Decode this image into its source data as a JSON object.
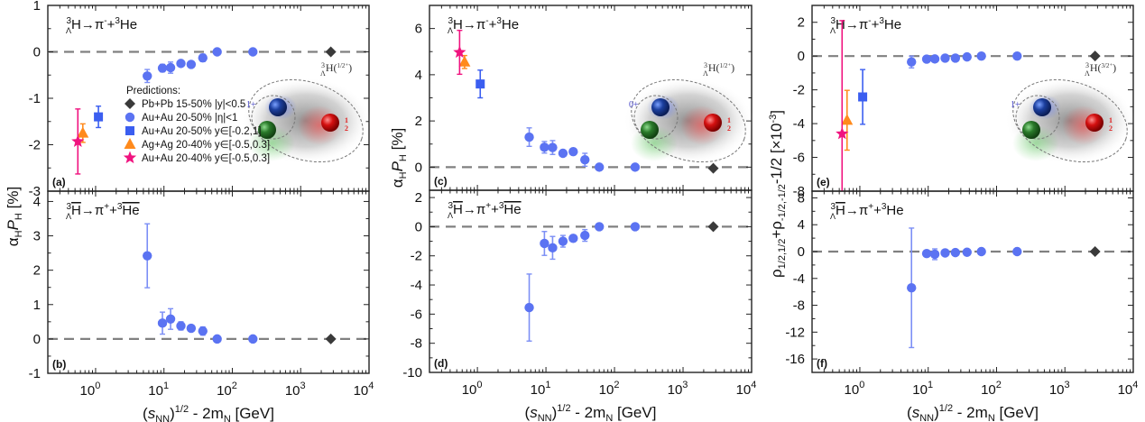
{
  "chart_data": [
    {
      "type": "scatter",
      "panel": "(a)",
      "reaction": "3ΛH → π⁻ + 3He",
      "ylabel": "α_H P_H [%]",
      "xlabel": "(s_NN)^1/2 - 2m_N [GeV]",
      "xscale": "log",
      "xlim": [
        0.2,
        10000
      ],
      "ylim": [
        -3,
        1
      ],
      "yticks": [
        -3,
        -2,
        -1,
        0,
        1
      ],
      "reference_line": 0,
      "inset": {
        "state": "3ΛH(1/2+)",
        "pair_label": "1+",
        "lambda_label": "1/2+"
      },
      "legend": {
        "title": "Predictions:",
        "position": "center-left",
        "entries": [
          {
            "label": "Pb+Pb 15-50% |y|<0.5",
            "marker": "diamond",
            "color": "#3a3a3a"
          },
          {
            "label": "Au+Au 20-50% |η|<1",
            "marker": "circle",
            "color": "#5b73f2"
          },
          {
            "label": "Au+Au 20-50% y∈[-0.2,1]",
            "marker": "square",
            "color": "#3b5ef0"
          },
          {
            "label": "Ag+Ag 20-40% y∈[-0.5,0.3]",
            "marker": "triangle",
            "color": "#ff8a1c"
          },
          {
            "label": "Au+Au 20-40% y∈[-0.5,0.3]",
            "marker": "star",
            "color": "#f0137f"
          }
        ]
      },
      "series": [
        {
          "name": "Pb+Pb 15-50% |y|<0.5",
          "points": [
            {
              "x": 2760,
              "y": 0.0
            }
          ]
        },
        {
          "name": "Au+Au 20-50% |η|<1",
          "points": [
            {
              "x": 5.7,
              "y": -0.52,
              "err": 0.14
            },
            {
              "x": 9.5,
              "y": -0.35,
              "err": 0.08
            },
            {
              "x": 12.5,
              "y": -0.34,
              "err": 0.12
            },
            {
              "x": 17.7,
              "y": -0.25,
              "err": 0.05
            },
            {
              "x": 25,
              "y": -0.27,
              "err": 0.04
            },
            {
              "x": 37,
              "y": -0.13,
              "err": 0.08
            },
            {
              "x": 60,
              "y": 0.0,
              "err": 0.03
            },
            {
              "x": 200,
              "y": 0.0,
              "err": 0.02
            }
          ]
        },
        {
          "name": "Au+Au 20-50% y∈[-0.2,1]",
          "points": [
            {
              "x": 1.1,
              "y": -1.4,
              "err": 0.23
            }
          ]
        },
        {
          "name": "Ag+Ag 20-40% y∈[-0.5,0.3]",
          "points": [
            {
              "x": 0.65,
              "y": -1.75,
              "err": 0.2
            }
          ]
        },
        {
          "name": "Au+Au 20-40% y∈[-0.5,0.3]",
          "points": [
            {
              "x": 0.55,
              "y": -1.93,
              "err": 0.7
            }
          ]
        }
      ]
    },
    {
      "type": "scatter",
      "panel": "(b)",
      "reaction": "3Λ anti-H → π⁺ + 3 anti-He",
      "ylabel": "α_H P_H [%]",
      "xlabel": "(s_NN)^1/2 - 2m_N [GeV]",
      "xscale": "log",
      "xlim": [
        0.2,
        10000
      ],
      "xticks": [
        "10^0",
        "10^1",
        "10^2",
        "10^3",
        "10^4"
      ],
      "ylim": [
        -1,
        4.3
      ],
      "yticks": [
        -1,
        0,
        1,
        2,
        3,
        4
      ],
      "reference_line": 0,
      "series": [
        {
          "name": "Pb+Pb 15-50% |y|<0.5",
          "points": [
            {
              "x": 2760,
              "y": 0.0
            }
          ]
        },
        {
          "name": "Au+Au 20-50% |η|<1",
          "points": [
            {
              "x": 5.7,
              "y": 2.42,
              "err": 0.93
            },
            {
              "x": 9.5,
              "y": 0.46,
              "err": 0.32
            },
            {
              "x": 12.5,
              "y": 0.58,
              "err": 0.3
            },
            {
              "x": 17.7,
              "y": 0.38,
              "err": 0.12
            },
            {
              "x": 25,
              "y": 0.31,
              "err": 0.06
            },
            {
              "x": 37,
              "y": 0.23,
              "err": 0.12
            },
            {
              "x": 60,
              "y": 0.0,
              "err": 0.05
            },
            {
              "x": 200,
              "y": 0.0,
              "err": 0.03
            }
          ]
        }
      ]
    },
    {
      "type": "scatter",
      "panel": "(c)",
      "reaction": "3ΛH → π⁻ + 3He",
      "ylabel": "α_H P_H [%]",
      "xscale": "log",
      "xlim": [
        0.2,
        10000
      ],
      "ylim": [
        -1,
        7
      ],
      "yticks": [
        0,
        2,
        4,
        6
      ],
      "reference_line": 0,
      "inset": {
        "state": "3ΛH(1/2+)",
        "pair_label": "0+",
        "lambda_label": "1/2+"
      },
      "series": [
        {
          "name": "Pb+Pb 15-50% |y|<0.5",
          "points": [
            {
              "x": 2760,
              "y": -0.05
            }
          ]
        },
        {
          "name": "Au+Au 20-50% |η|<1",
          "points": [
            {
              "x": 5.7,
              "y": 1.3,
              "err": 0.4
            },
            {
              "x": 9.5,
              "y": 0.86,
              "err": 0.25
            },
            {
              "x": 12.5,
              "y": 0.85,
              "err": 0.3
            },
            {
              "x": 17.7,
              "y": 0.6,
              "err": 0.1
            },
            {
              "x": 25,
              "y": 0.67,
              "err": 0.08
            },
            {
              "x": 37,
              "y": 0.32,
              "err": 0.28
            },
            {
              "x": 60,
              "y": 0.0,
              "err": 0.05
            },
            {
              "x": 200,
              "y": 0.0,
              "err": 0.03
            }
          ]
        },
        {
          "name": "Au+Au 20-50% y∈[-0.2,1]",
          "points": [
            {
              "x": 1.1,
              "y": 3.6,
              "err": 0.6
            }
          ]
        },
        {
          "name": "Ag+Ag 20-40% y∈[-0.5,0.3]",
          "points": [
            {
              "x": 0.65,
              "y": 4.55,
              "err": 0.28
            }
          ]
        },
        {
          "name": "Au+Au 20-40% y∈[-0.5,0.3]",
          "points": [
            {
              "x": 0.55,
              "y": 4.97,
              "err": 0.95
            }
          ]
        }
      ]
    },
    {
      "type": "scatter",
      "panel": "(d)",
      "reaction": "3Λ anti-H → π⁺ + 3 anti-He",
      "ylabel": "α_H P_H [%]",
      "xlabel": "(s_NN)^1/2 - 2m_N [GeV]",
      "xscale": "log",
      "xlim": [
        0.2,
        10000
      ],
      "xticks": [
        "10^0",
        "10^1",
        "10^2",
        "10^3",
        "10^4"
      ],
      "ylim": [
        -10,
        2.5
      ],
      "yticks": [
        -10,
        -8,
        -6,
        -4,
        -2,
        0,
        2
      ],
      "reference_line": 0,
      "series": [
        {
          "name": "Pb+Pb 15-50% |y|<0.5",
          "points": [
            {
              "x": 2760,
              "y": 0.0
            }
          ]
        },
        {
          "name": "Au+Au 20-50% |η|<1",
          "points": [
            {
              "x": 5.7,
              "y": -5.55,
              "err": 2.3
            },
            {
              "x": 9.5,
              "y": -1.15,
              "err": 0.82
            },
            {
              "x": 12.5,
              "y": -1.45,
              "err": 0.78
            },
            {
              "x": 17.7,
              "y": -1.0,
              "err": 0.4
            },
            {
              "x": 25,
              "y": -0.8,
              "err": 0.2
            },
            {
              "x": 37,
              "y": -0.6,
              "err": 0.4
            },
            {
              "x": 60,
              "y": 0.0,
              "err": 0.1
            },
            {
              "x": 200,
              "y": 0.0,
              "err": 0.05
            }
          ]
        }
      ]
    },
    {
      "type": "scatter",
      "panel": "(e)",
      "reaction": "3ΛH → π⁻ + 3He",
      "ylabel": "ρ1/2,1/2 + ρ-1/2,-1/2 - 1/2 [×10^-3]",
      "xscale": "log",
      "xlim": [
        0.2,
        10000
      ],
      "ylim": [
        -8,
        3
      ],
      "yticks": [
        -8,
        -6,
        -4,
        -2,
        0,
        2
      ],
      "reference_line": 0,
      "inset": {
        "state": "3ΛH(3/2+)",
        "pair_label": "1+",
        "lambda_label": "1/2+"
      },
      "series": [
        {
          "name": "Pb+Pb 15-50% |y|<0.5",
          "points": [
            {
              "x": 2760,
              "y": 0.0
            }
          ]
        },
        {
          "name": "Au+Au 20-50% |η|<1",
          "points": [
            {
              "x": 5.7,
              "y": -0.35,
              "err": 0.35
            },
            {
              "x": 9.5,
              "y": -0.18,
              "err": 0.08
            },
            {
              "x": 12.5,
              "y": -0.17,
              "err": 0.12
            },
            {
              "x": 17.7,
              "y": -0.12,
              "err": 0.06
            },
            {
              "x": 25,
              "y": -0.12,
              "err": 0.05
            },
            {
              "x": 37,
              "y": -0.05,
              "err": 0.05
            },
            {
              "x": 60,
              "y": 0.0,
              "err": 0.03
            },
            {
              "x": 200,
              "y": 0.0,
              "err": 0.02
            }
          ]
        },
        {
          "name": "Au+Au 20-50% y∈[-0.2,1]",
          "points": [
            {
              "x": 1.1,
              "y": -2.42,
              "err": 1.62
            }
          ]
        },
        {
          "name": "Ag+Ag 20-40% y∈[-0.5,0.3]",
          "points": [
            {
              "x": 0.65,
              "y": -3.8,
              "err": 1.77
            }
          ]
        },
        {
          "name": "Au+Au 20-40% y∈[-0.5,0.3]",
          "points": [
            {
              "x": 0.55,
              "y": -4.6,
              "err": 6.7
            }
          ]
        }
      ]
    },
    {
      "type": "scatter",
      "panel": "(f)",
      "reaction": "3Λ anti-H → π⁺ + 3He",
      "ylabel": "ρ1/2,1/2 + ρ-1/2,-1/2 - 1/2 [×10^-3]",
      "xlabel": "(s_NN)^1/2 - 2m_N [GeV]",
      "xscale": "log",
      "xlim": [
        0.2,
        10000
      ],
      "xticks": [
        "10^0",
        "10^1",
        "10^2",
        "10^3",
        "10^4"
      ],
      "ylim": [
        -18,
        9
      ],
      "yticks": [
        -16,
        -12,
        -8,
        -4,
        0,
        4,
        8
      ],
      "reference_line": 0,
      "series": [
        {
          "name": "Pb+Pb 15-50% |y|<0.5",
          "points": [
            {
              "x": 2760,
              "y": 0.0
            }
          ]
        },
        {
          "name": "Au+Au 20-50% |η|<1",
          "points": [
            {
              "x": 5.7,
              "y": -5.4,
              "err": 8.9
            },
            {
              "x": 9.5,
              "y": -0.3,
              "err": 0.4
            },
            {
              "x": 12.5,
              "y": -0.4,
              "err": 0.8
            },
            {
              "x": 17.7,
              "y": -0.2,
              "err": 0.3
            },
            {
              "x": 25,
              "y": -0.15,
              "err": 0.2
            },
            {
              "x": 37,
              "y": -0.1,
              "err": 0.2
            },
            {
              "x": 60,
              "y": 0.0,
              "err": 0.1
            },
            {
              "x": 200,
              "y": 0.0,
              "err": 0.05
            }
          ]
        }
      ]
    }
  ],
  "labels": {
    "panels": [
      "(a)",
      "(b)",
      "(c)",
      "(d)",
      "(e)",
      "(f)"
    ],
    "ylabel_left": "α",
    "ylabel_left_sub": "H",
    "ylabel_left_p": "P",
    "ylabel_left_unit": " [%]",
    "ylabel_right": "ρ1/2,1/2+ρ-1/2,-1/2-1/2  [×10-3]",
    "xlabel_main": "(s",
    "xlabel_sub": "NN",
    "xlabel_rest": ")",
    "xlabel_sup": "1/2",
    "xlabel_tail": " - 2m",
    "xlabel_sub2": "N",
    "xlabel_end": " [GeV]",
    "legend_title": "Predictions:",
    "xtick_base": "10",
    "xtick_exps": [
      "0",
      "1",
      "2",
      "3",
      "4"
    ]
  },
  "colors": {
    "diamond": "#3a3a3a",
    "circle": "#5b73f2",
    "square": "#3b5ef0",
    "triangle": "#ff8a1c",
    "star": "#f0137f",
    "zero_line": "#808080",
    "axis": "#222222"
  }
}
